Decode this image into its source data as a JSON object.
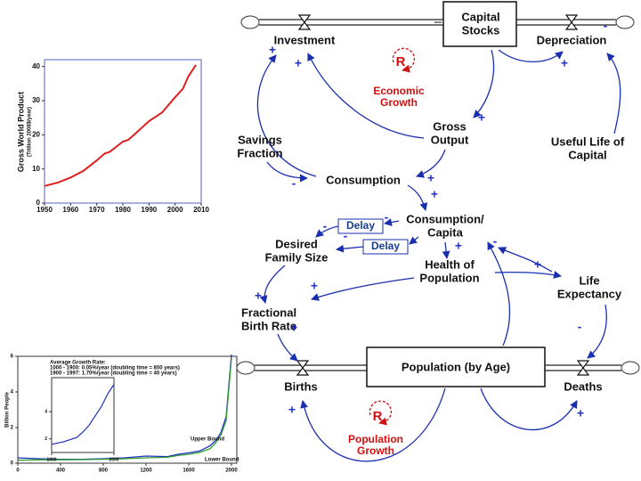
{
  "nodes": [
    {
      "lines": [
        "Investment"
      ]
    },
    {
      "lines": [
        "Capital",
        "Stocks"
      ]
    },
    {
      "lines": [
        "Depreciation"
      ]
    },
    {
      "lines": [
        "Gross",
        "Output"
      ]
    },
    {
      "lines": [
        "Savings",
        "Fraction"
      ]
    },
    {
      "lines": [
        "Useful Life of",
        "Capital"
      ]
    },
    {
      "lines": [
        "Consumption"
      ]
    },
    {
      "lines": [
        "Consumption/",
        "Capita"
      ]
    },
    {
      "lines": [
        "Desired",
        "Family Size"
      ]
    },
    {
      "lines": [
        "Health of",
        "Population"
      ]
    },
    {
      "lines": [
        "Life",
        "Expectancy"
      ]
    },
    {
      "lines": [
        "Fractional",
        "Birth Rate"
      ]
    },
    {
      "lines": [
        "Population (by Age)"
      ]
    },
    {
      "lines": [
        "Births"
      ]
    },
    {
      "lines": [
        "Deaths"
      ]
    }
  ],
  "signs": [
    "+",
    "+",
    "+",
    "+",
    "-",
    "-",
    "+",
    "+",
    "-",
    "-",
    "-",
    "+",
    "-",
    "+",
    "+",
    "+",
    "+",
    "-",
    "+",
    "+"
  ],
  "loops": [
    {
      "symbol": "R",
      "label": [
        "Economic",
        "Growth"
      ]
    },
    {
      "symbol": "R",
      "label": [
        "Population",
        "Growth"
      ]
    }
  ],
  "delays": [
    "Delay",
    "Delay"
  ],
  "chart_data": [
    {
      "type": "line",
      "ylabel": "Gross World Product",
      "ylabel_unit": "(Trillion 2008$/year)",
      "x": [
        1950,
        1955,
        1960,
        1965,
        1970,
        1973,
        1975,
        1980,
        1982,
        1985,
        1990,
        1995,
        2000,
        2003,
        2005,
        2008
      ],
      "values": [
        5,
        6,
        7.5,
        9.5,
        12.5,
        14.5,
        15,
        18,
        18.5,
        20.5,
        24,
        26.5,
        31,
        33.5,
        37,
        40.5
      ],
      "color": "#e02020",
      "xlim": [
        1950,
        2010
      ],
      "ylim": [
        0,
        42
      ],
      "xticks": [
        1950,
        1960,
        1970,
        1980,
        1990,
        2000,
        2010
      ],
      "yticks": [
        0,
        10,
        20,
        30,
        40
      ]
    },
    {
      "type": "line",
      "ylabel": "Billion People",
      "notes": [
        "Average Growth Rate:",
        "1000 - 1900: 0.05%/year (doubling time = 800 years)",
        "1900 - 1997: 1.70%/year (doubling time = 40 years)"
      ],
      "x": [
        0,
        200,
        400,
        600,
        800,
        1000,
        1200,
        1400,
        1500,
        1600,
        1700,
        1800,
        1850,
        1900,
        1950,
        2000
      ],
      "series": [
        {
          "name": "Upper Bound",
          "color": "#2030c0",
          "values": [
            0.3,
            0.25,
            0.22,
            0.22,
            0.25,
            0.3,
            0.4,
            0.37,
            0.5,
            0.58,
            0.68,
            0.98,
            1.26,
            1.7,
            2.6,
            6.1
          ]
        },
        {
          "name": "Lower Bound",
          "color": "#30a030",
          "values": [
            0.17,
            0.19,
            0.19,
            0.2,
            0.22,
            0.25,
            0.3,
            0.33,
            0.43,
            0.5,
            0.6,
            0.81,
            1.13,
            1.55,
            2.4,
            5.9
          ]
        }
      ],
      "xlim": [
        0,
        2050
      ],
      "ylim": [
        0,
        6
      ],
      "xticks": [
        0,
        400,
        800,
        1200,
        1600,
        2000
      ],
      "yticks": [
        0,
        2,
        4,
        6
      ],
      "inset": {
        "x": [
          1900,
          1920,
          1940,
          1950,
          1960,
          1970,
          1980,
          1990,
          2000
        ],
        "values": [
          1.6,
          1.8,
          2.1,
          2.5,
          3.0,
          3.7,
          4.4,
          5.3,
          6.0
        ],
        "color": "#2030c0",
        "xlim": [
          1900,
          2000
        ],
        "ylim": [
          1,
          6.5
        ],
        "xticks": [
          1900,
          2000
        ],
        "yticks": [
          2,
          4
        ]
      }
    }
  ]
}
